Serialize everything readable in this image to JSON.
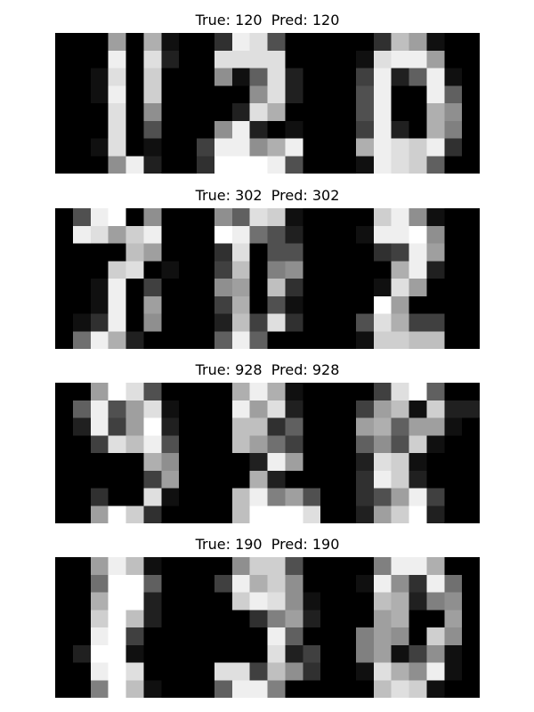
{
  "chart_data": [
    {
      "type": "heatmap",
      "title": "True: 120  Pred: 120",
      "rows": 8,
      "cols": 24,
      "values": [
        [
          0,
          0,
          0,
          10,
          0,
          11,
          1,
          0,
          0,
          3,
          15,
          14,
          5,
          0,
          0,
          0,
          0,
          0,
          3,
          12,
          10,
          1,
          0,
          0
        ],
        [
          0,
          0,
          0,
          15,
          0,
          14,
          2,
          0,
          0,
          14,
          14,
          14,
          14,
          0,
          0,
          0,
          0,
          1,
          14,
          15,
          15,
          10,
          0,
          0
        ],
        [
          0,
          0,
          1,
          14,
          0,
          13,
          0,
          0,
          0,
          9,
          1,
          6,
          14,
          2,
          0,
          0,
          0,
          4,
          15,
          2,
          6,
          15,
          1,
          0
        ],
        [
          0,
          0,
          1,
          15,
          0,
          13,
          0,
          0,
          0,
          0,
          0,
          9,
          14,
          2,
          0,
          0,
          0,
          5,
          15,
          0,
          0,
          15,
          6,
          0
        ],
        [
          0,
          0,
          0,
          14,
          0,
          9,
          0,
          0,
          0,
          0,
          2,
          14,
          11,
          0,
          0,
          0,
          0,
          5,
          15,
          0,
          0,
          11,
          9,
          0
        ],
        [
          0,
          0,
          0,
          14,
          0,
          5,
          0,
          0,
          0,
          9,
          15,
          2,
          0,
          1,
          0,
          0,
          0,
          4,
          15,
          2,
          0,
          11,
          8,
          0
        ],
        [
          0,
          0,
          1,
          14,
          0,
          1,
          0,
          0,
          4,
          15,
          15,
          9,
          11,
          15,
          0,
          0,
          0,
          11,
          15,
          14,
          13,
          15,
          3,
          0
        ],
        [
          0,
          0,
          0,
          9,
          15,
          2,
          0,
          0,
          3,
          16,
          16,
          16,
          15,
          5,
          0,
          0,
          0,
          1,
          15,
          14,
          13,
          6,
          0,
          0
        ]
      ]
    },
    {
      "type": "heatmap",
      "title": "True: 302  Pred: 302",
      "rows": 8,
      "cols": 24,
      "values": [
        [
          0,
          5,
          15,
          16,
          0,
          9,
          0,
          0,
          0,
          9,
          6,
          14,
          13,
          1,
          0,
          0,
          0,
          0,
          13,
          15,
          9,
          1,
          0,
          0
        ],
        [
          0,
          15,
          14,
          10,
          13,
          15,
          0,
          0,
          0,
          16,
          15,
          7,
          5,
          2,
          0,
          0,
          0,
          1,
          15,
          15,
          16,
          9,
          0,
          0
        ],
        [
          0,
          0,
          0,
          0,
          12,
          10,
          0,
          0,
          0,
          3,
          14,
          0,
          5,
          5,
          0,
          0,
          0,
          0,
          3,
          4,
          15,
          10,
          0,
          0
        ],
        [
          0,
          0,
          0,
          13,
          14,
          0,
          1,
          0,
          0,
          4,
          12,
          0,
          8,
          9,
          0,
          0,
          0,
          0,
          0,
          11,
          15,
          2,
          0,
          0
        ],
        [
          0,
          0,
          1,
          15,
          0,
          4,
          0,
          0,
          0,
          9,
          10,
          0,
          12,
          3,
          0,
          0,
          0,
          0,
          1,
          14,
          10,
          0,
          0,
          0
        ],
        [
          0,
          0,
          1,
          15,
          0,
          10,
          0,
          0,
          0,
          4,
          11,
          0,
          5,
          1,
          0,
          0,
          0,
          0,
          16,
          10,
          0,
          0,
          0,
          0
        ],
        [
          0,
          1,
          3,
          15,
          0,
          9,
          0,
          0,
          0,
          2,
          12,
          4,
          14,
          3,
          0,
          0,
          0,
          5,
          14,
          11,
          4,
          4,
          0,
          0
        ],
        [
          0,
          7,
          15,
          11,
          2,
          0,
          0,
          0,
          0,
          6,
          15,
          6,
          0,
          0,
          0,
          0,
          0,
          1,
          13,
          13,
          12,
          12,
          0,
          0
        ]
      ]
    },
    {
      "type": "heatmap",
      "title": "True: 928  Pred: 928",
      "rows": 8,
      "cols": 24,
      "values": [
        [
          0,
          0,
          10,
          16,
          14,
          5,
          0,
          0,
          0,
          0,
          11,
          15,
          11,
          1,
          0,
          0,
          0,
          0,
          4,
          14,
          16,
          6,
          0,
          0
        ],
        [
          0,
          6,
          15,
          5,
          10,
          14,
          1,
          0,
          0,
          0,
          15,
          10,
          14,
          2,
          0,
          0,
          0,
          4,
          10,
          12,
          1,
          13,
          2,
          2
        ],
        [
          0,
          2,
          15,
          4,
          10,
          16,
          2,
          0,
          0,
          0,
          12,
          12,
          3,
          6,
          0,
          0,
          0,
          10,
          11,
          6,
          10,
          10,
          1,
          0
        ],
        [
          0,
          0,
          4,
          14,
          12,
          15,
          5,
          0,
          0,
          0,
          12,
          10,
          7,
          4,
          0,
          0,
          0,
          6,
          9,
          5,
          13,
          1,
          0,
          0
        ],
        [
          0,
          0,
          0,
          0,
          0,
          11,
          9,
          0,
          0,
          0,
          0,
          2,
          15,
          10,
          0,
          0,
          0,
          2,
          14,
          13,
          1,
          0,
          0,
          0
        ],
        [
          0,
          0,
          0,
          0,
          0,
          4,
          10,
          0,
          0,
          0,
          0,
          11,
          2,
          0,
          0,
          0,
          0,
          3,
          15,
          13,
          2,
          0,
          0,
          0
        ],
        [
          0,
          0,
          3,
          0,
          0,
          14,
          1,
          0,
          0,
          0,
          12,
          15,
          8,
          10,
          5,
          0,
          0,
          3,
          5,
          10,
          15,
          4,
          0,
          0
        ],
        [
          0,
          0,
          10,
          16,
          13,
          3,
          0,
          0,
          0,
          0,
          12,
          16,
          16,
          16,
          14,
          0,
          0,
          2,
          10,
          13,
          16,
          2,
          0,
          0
        ]
      ]
    },
    {
      "type": "heatmap",
      "title": "True: 190  Pred: 190",
      "rows": 8,
      "cols": 24,
      "values": [
        [
          0,
          0,
          10,
          15,
          12,
          1,
          0,
          0,
          0,
          0,
          9,
          13,
          13,
          5,
          0,
          0,
          0,
          0,
          8,
          15,
          15,
          11,
          0,
          0
        ],
        [
          0,
          0,
          7,
          16,
          16,
          6,
          0,
          0,
          0,
          4,
          15,
          11,
          13,
          9,
          0,
          0,
          0,
          1,
          15,
          9,
          3,
          15,
          7,
          0
        ],
        [
          0,
          0,
          11,
          16,
          16,
          2,
          0,
          0,
          0,
          0,
          13,
          15,
          14,
          9,
          1,
          0,
          0,
          0,
          12,
          11,
          2,
          8,
          9,
          0
        ],
        [
          0,
          0,
          13,
          16,
          12,
          2,
          0,
          0,
          0,
          0,
          0,
          3,
          8,
          10,
          2,
          0,
          0,
          0,
          10,
          11,
          0,
          0,
          10,
          0
        ],
        [
          0,
          0,
          15,
          16,
          4,
          0,
          0,
          0,
          0,
          0,
          0,
          0,
          15,
          6,
          0,
          0,
          0,
          8,
          10,
          9,
          0,
          13,
          9,
          0
        ],
        [
          0,
          2,
          16,
          16,
          1,
          0,
          0,
          0,
          0,
          0,
          0,
          0,
          14,
          2,
          4,
          0,
          0,
          8,
          10,
          1,
          4,
          9,
          1,
          0
        ],
        [
          0,
          0,
          15,
          16,
          14,
          0,
          0,
          0,
          0,
          14,
          14,
          4,
          12,
          9,
          3,
          0,
          0,
          1,
          14,
          11,
          9,
          15,
          1,
          0
        ],
        [
          0,
          0,
          8,
          16,
          12,
          1,
          0,
          0,
          0,
          6,
          15,
          15,
          8,
          0,
          0,
          0,
          0,
          0,
          12,
          14,
          13,
          1,
          0,
          0
        ]
      ]
    }
  ]
}
